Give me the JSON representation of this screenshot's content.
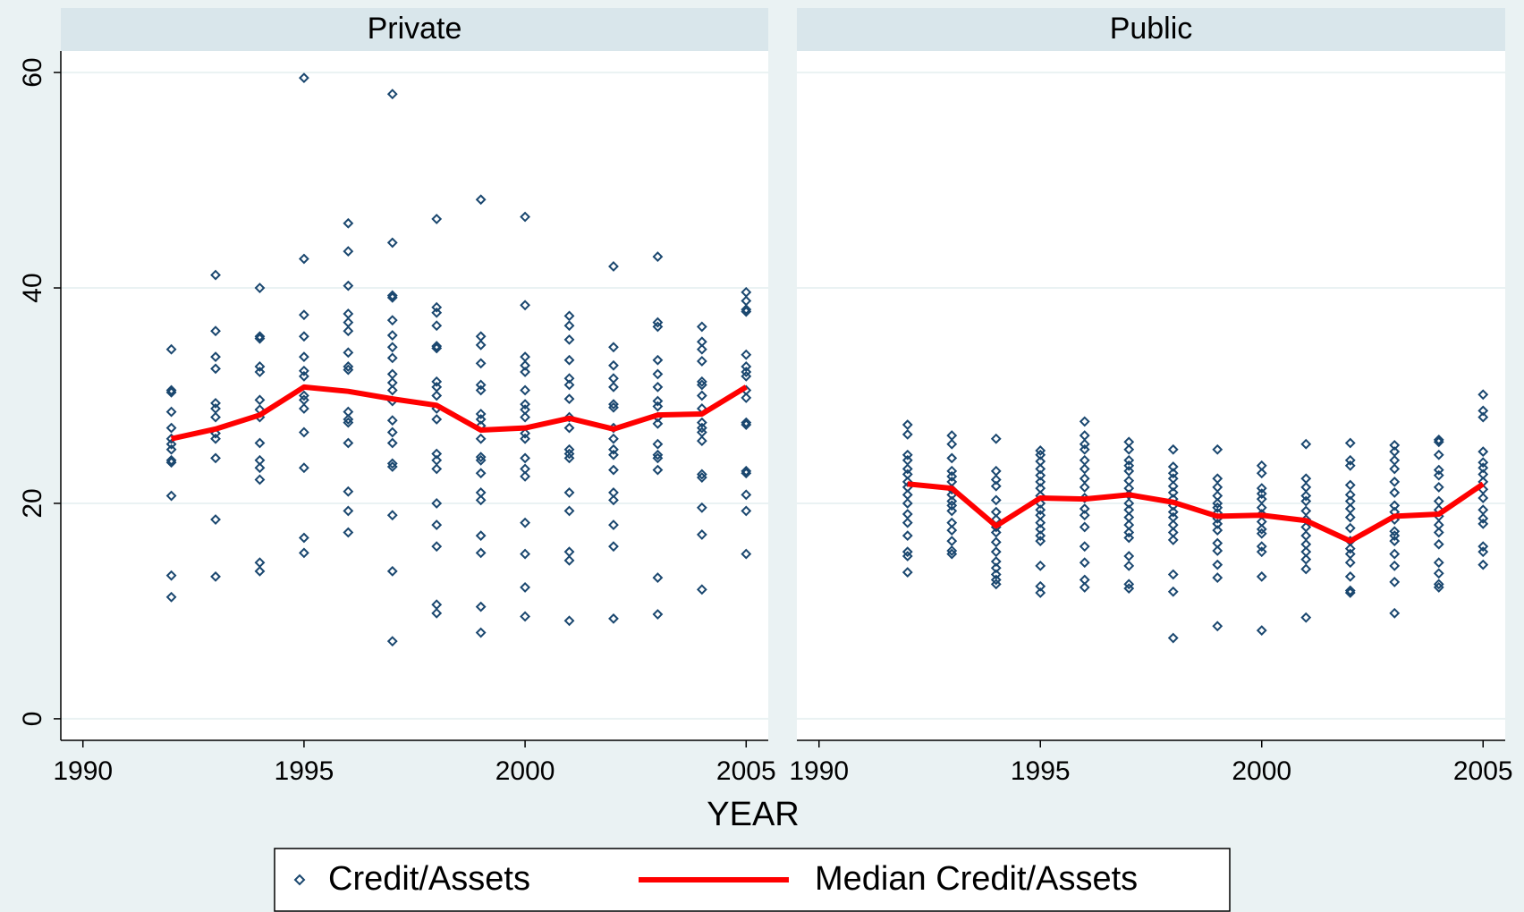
{
  "chart_data": {
    "type": "scatter",
    "xlabel": "YEAR",
    "xlim": [
      1989.5,
      2005.5
    ],
    "xticks": [
      1990,
      1995,
      2000,
      2005
    ],
    "ylim": [
      -2,
      62
    ],
    "yticks": [
      0,
      20,
      40,
      60
    ],
    "grid": true,
    "legend": "bottom",
    "series": [
      {
        "name": "Credit/Assets",
        "color": "#1a476f"
      },
      {
        "name": "Median Credit/Assets",
        "color": "#ff0000"
      }
    ],
    "panels": [
      {
        "title": "Private",
        "points": [
          {
            "x": 1992,
            "values": [
              34.3,
              30.5,
              30.3,
              28.5,
              27,
              26,
              25.5,
              25,
              24,
              23.8,
              20.7,
              13.3,
              11.3
            ]
          },
          {
            "x": 1993,
            "values": [
              41.2,
              36,
              33.6,
              32.5,
              29.3,
              28.8,
              28,
              26.5,
              26,
              24.2,
              18.5,
              13.2
            ]
          },
          {
            "x": 1994,
            "values": [
              40,
              35.5,
              35.3,
              32.7,
              32.2,
              29.6,
              28.7,
              28,
              25.6,
              24,
              23.3,
              22.2,
              14.5,
              13.7
            ]
          },
          {
            "x": 1995,
            "values": [
              59.5,
              42.7,
              37.5,
              35.5,
              33.6,
              32.3,
              31.8,
              30,
              29.6,
              28.8,
              26.6,
              23.3,
              16.8,
              15.4
            ]
          },
          {
            "x": 1996,
            "values": [
              46,
              43.4,
              40.2,
              37.6,
              36.8,
              36,
              34,
              32.7,
              32.4,
              28.5,
              27.8,
              27.5,
              25.6,
              21.1,
              19.3,
              17.3
            ]
          },
          {
            "x": 1997,
            "values": [
              58,
              44.2,
              39.3,
              39.1,
              37,
              35.6,
              34.5,
              33.5,
              32,
              31.2,
              30.5,
              29.5,
              27.7,
              26.6,
              25.6,
              23.7,
              23.4,
              18.9,
              13.7,
              7.2
            ]
          },
          {
            "x": 1998,
            "values": [
              46.4,
              38.2,
              37.7,
              36.5,
              34.6,
              34.4,
              31.3,
              30.8,
              30,
              28.8,
              27.8,
              24.6,
              24,
              23.2,
              20,
              18,
              16,
              10.6,
              9.8
            ]
          },
          {
            "x": 1999,
            "values": [
              48.2,
              35.5,
              34.7,
              33,
              31,
              30.5,
              28.3,
              27.8,
              27.2,
              26,
              24.3,
              24,
              22.8,
              21,
              20.3,
              17,
              15.4,
              10.4,
              8
            ]
          },
          {
            "x": 2000,
            "values": [
              46.6,
              38.4,
              33.6,
              32.8,
              32.2,
              30.5,
              29.2,
              28.7,
              28,
              26.5,
              26,
              24.2,
              23.2,
              22.5,
              18.2,
              15.3,
              12.2,
              9.5
            ]
          },
          {
            "x": 2001,
            "values": [
              37.4,
              36.5,
              35.2,
              33.3,
              31.6,
              31,
              29.7,
              28,
              27,
              25,
              24.6,
              24.2,
              21,
              19.3,
              15.5,
              14.7,
              9.1
            ]
          },
          {
            "x": 2002,
            "values": [
              42,
              34.5,
              32.8,
              31.6,
              30.8,
              29.2,
              28.9,
              27,
              26,
              25,
              24.5,
              23.1,
              21,
              20.3,
              18,
              16,
              9.3
            ]
          },
          {
            "x": 2003,
            "values": [
              42.9,
              36.8,
              36.4,
              33.3,
              32,
              30.8,
              29.5,
              29,
              28,
              27.4,
              25.5,
              24.5,
              24.2,
              23.1,
              13.1,
              9.7
            ]
          },
          {
            "x": 2004,
            "values": [
              36.4,
              35,
              34.3,
              33.2,
              31.3,
              31,
              30,
              28.8,
              27.5,
              27,
              26.6,
              25.8,
              22.7,
              22.4,
              19.6,
              17.1,
              12
            ]
          },
          {
            "x": 2005,
            "values": [
              39.6,
              38.8,
              38,
              37.8,
              33.8,
              32.7,
              32.2,
              31.8,
              30.5,
              29.8,
              27.5,
              27.3,
              23,
              22.8,
              20.8,
              19.3,
              15.3
            ]
          }
        ],
        "median": {
          "x": [
            1992,
            1993,
            1994,
            1995,
            1996,
            1997,
            1998,
            1999,
            2000,
            2001,
            2002,
            2003,
            2004,
            2005
          ],
          "values": [
            26,
            26.9,
            28.2,
            30.8,
            30.4,
            29.7,
            29.1,
            26.8,
            27,
            27.9,
            26.9,
            28.2,
            28.3,
            30.8
          ]
        }
      },
      {
        "title": "Public",
        "points": [
          {
            "x": 1992,
            "values": [
              27.3,
              26.4,
              24.5,
              24,
              23.2,
              22.7,
              22,
              21.5,
              20.8,
              20,
              19,
              18.2,
              17,
              15.5,
              15.1,
              13.6
            ]
          },
          {
            "x": 1993,
            "values": [
              26.3,
              25.5,
              24.2,
              23,
              22.5,
              22,
              21.3,
              20.8,
              20.2,
              19.8,
              19.3,
              18.2,
              17.5,
              16.5,
              15.6,
              15.3
            ]
          },
          {
            "x": 1994,
            "values": [
              26,
              23,
              22.2,
              21.6,
              20.3,
              19.2,
              18.5,
              17.8,
              17.3,
              16.4,
              15.5,
              14.6,
              14,
              13.4,
              12.9,
              12.5
            ]
          },
          {
            "x": 1995,
            "values": [
              24.9,
              24.5,
              23.9,
              23.2,
              22.6,
              22,
              21.4,
              20.7,
              20,
              19.4,
              18.9,
              18.2,
              17.6,
              17,
              16.5,
              14.2,
              12.3,
              11.7
            ]
          },
          {
            "x": 1996,
            "values": [
              27.6,
              26.3,
              25.5,
              25,
              24,
              23.2,
              22.3,
              21.5,
              20.5,
              19.5,
              18.9,
              17.8,
              16,
              14.5,
              12.9,
              12.2
            ]
          },
          {
            "x": 1997,
            "values": [
              25.7,
              25,
              24,
              23.5,
              23,
              22.1,
              21.4,
              20.8,
              20,
              19.4,
              18.7,
              18,
              17.3,
              16.8,
              15.1,
              14.2,
              12.5,
              12.1
            ]
          },
          {
            "x": 1998,
            "values": [
              25,
              23.4,
              22.8,
              22.3,
              21.6,
              21,
              20.4,
              19.8,
              19.2,
              18.7,
              18,
              17.3,
              16.6,
              13.4,
              11.8,
              7.5
            ]
          },
          {
            "x": 1999,
            "values": [
              25,
              22.3,
              21.5,
              20.7,
              20,
              19.6,
              19.1,
              18.6,
              18.1,
              17.5,
              16.3,
              15.6,
              14.3,
              13.1,
              8.6
            ]
          },
          {
            "x": 2000,
            "values": [
              23.5,
              22.8,
              21.4,
              20.9,
              20.4,
              19.6,
              19,
              18.3,
              17.6,
              17.2,
              16,
              15.5,
              13.2,
              8.2
            ]
          },
          {
            "x": 2001,
            "values": [
              25.5,
              22.3,
              21.5,
              20.7,
              20.2,
              19.3,
              18.5,
              17.8,
              17,
              16.2,
              15.5,
              14.8,
              13.9,
              9.4
            ]
          },
          {
            "x": 2002,
            "values": [
              25.6,
              24,
              23.5,
              21.7,
              20.8,
              20.2,
              19.5,
              18.7,
              17.7,
              16.5,
              15.8,
              15.3,
              14.5,
              13.2,
              11.9,
              11.7
            ]
          },
          {
            "x": 2003,
            "values": [
              25.4,
              24.8,
              24,
              23.2,
              22,
              21,
              19.8,
              19.2,
              18.5,
              17.4,
              17,
              16.5,
              15.3,
              14.2,
              12.7,
              9.8
            ]
          },
          {
            "x": 2004,
            "values": [
              25.9,
              25.7,
              24.5,
              23.1,
              22.6,
              21.5,
              20.2,
              19.4,
              18.8,
              18,
              17.3,
              16.2,
              14.5,
              13.5,
              12.5,
              12.2
            ]
          },
          {
            "x": 2005,
            "values": [
              30.1,
              28.6,
              28,
              24.8,
              23.8,
              23.3,
              22.7,
              22,
              21.3,
              20.5,
              19.4,
              18.6,
              18.1,
              16,
              15.5,
              14.3
            ]
          }
        ],
        "median": {
          "x": [
            1992,
            1993,
            1994,
            1995,
            1996,
            1997,
            1998,
            1999,
            2000,
            2001,
            2002,
            2003,
            2004,
            2005
          ],
          "values": [
            21.8,
            21.4,
            17.9,
            20.5,
            20.4,
            20.8,
            20.1,
            18.8,
            18.9,
            18.4,
            16.5,
            18.8,
            19.0,
            21.8
          ]
        }
      }
    ]
  }
}
